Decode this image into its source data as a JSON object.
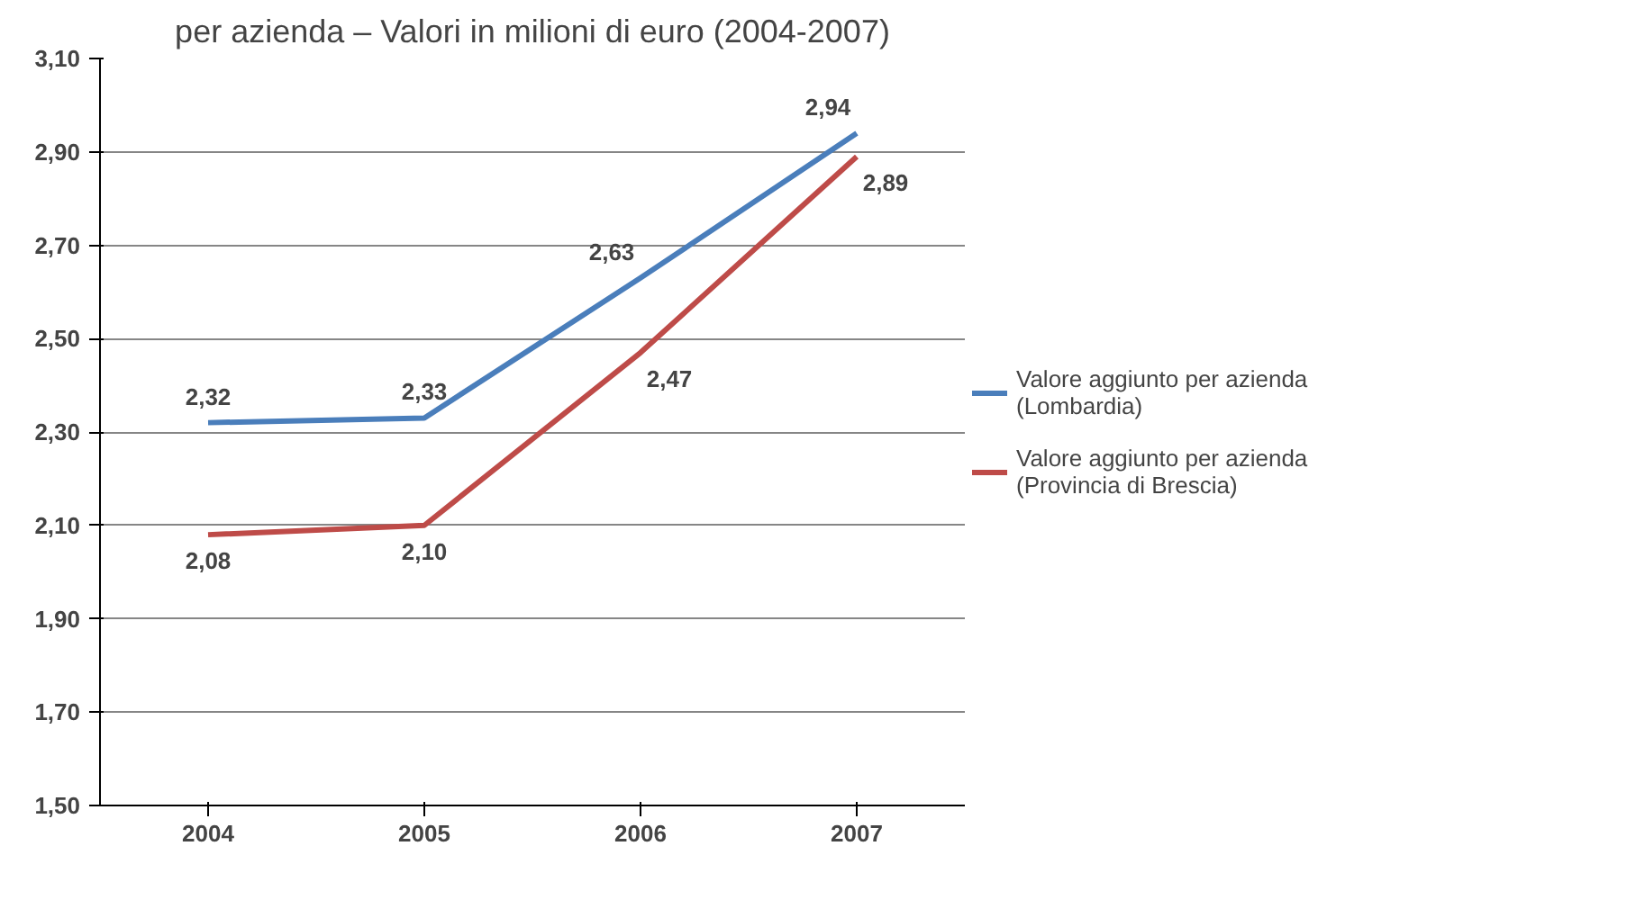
{
  "chart_data": {
    "type": "line",
    "title": "per azienda – Valori in milioni di euro (2004-2007)",
    "categories": [
      "2004",
      "2005",
      "2006",
      "2007"
    ],
    "series": [
      {
        "name": "Valore aggiunto per azienda (Lombardia)",
        "color": "#4a7ebb",
        "values": [
          2.32,
          2.33,
          2.63,
          2.94
        ],
        "value_labels": [
          "2,32",
          "2,33",
          "2,63",
          "2,94"
        ]
      },
      {
        "name": "Valore aggiunto per azienda (Provincia di Brescia)",
        "color": "#be4b48",
        "values": [
          2.08,
          2.1,
          2.47,
          2.89
        ],
        "value_labels": [
          "2,08",
          "2,10",
          "2,47",
          "2,89"
        ]
      }
    ],
    "ylim": [
      1.5,
      3.1
    ],
    "yticks": [
      {
        "value": 1.5,
        "label": "1,50"
      },
      {
        "value": 1.7,
        "label": "1,70"
      },
      {
        "value": 1.9,
        "label": "1,90"
      },
      {
        "value": 2.1,
        "label": "2,10"
      },
      {
        "value": 2.3,
        "label": "2,30"
      },
      {
        "value": 2.5,
        "label": "2,50"
      },
      {
        "value": 2.7,
        "label": "2,70"
      },
      {
        "value": 2.9,
        "label": "2,90"
      },
      {
        "value": 3.1,
        "label": "3,10"
      }
    ],
    "grid": "y",
    "legend": "right",
    "marker": "none",
    "line_style": "solid",
    "data_labels": true
  }
}
